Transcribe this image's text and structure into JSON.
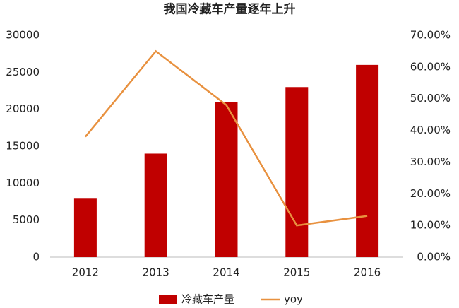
{
  "chart_data": {
    "type": "bar",
    "title": "我国冷藏车产量逐年上升",
    "categories": [
      "2012",
      "2013",
      "2014",
      "2015",
      "2016"
    ],
    "series": [
      {
        "name": "冷藏车产量",
        "type": "bar",
        "color": "#c00000",
        "values": [
          8000,
          14000,
          21000,
          23000,
          26000
        ]
      },
      {
        "name": "yoy",
        "type": "line",
        "axis": "y2",
        "color": "#e8913f",
        "values": [
          38,
          65,
          48,
          10,
          13
        ]
      }
    ],
    "ylim": [
      0,
      30000
    ],
    "yticks": [
      0,
      5000,
      10000,
      15000,
      20000,
      25000,
      30000
    ],
    "y2lim": [
      0,
      70
    ],
    "y2ticks": [
      {
        "value": 0,
        "label": "0.00%"
      },
      {
        "value": 10,
        "label": "10.00%"
      },
      {
        "value": 20,
        "label": "20.00%"
      },
      {
        "value": 30,
        "label": "30.00%"
      },
      {
        "value": 40,
        "label": "40.00%"
      },
      {
        "value": 50,
        "label": "50.00%"
      },
      {
        "value": 60,
        "label": "60.00%"
      },
      {
        "value": 70,
        "label": "70.00%"
      }
    ],
    "grid": false,
    "legend": "bottom"
  }
}
